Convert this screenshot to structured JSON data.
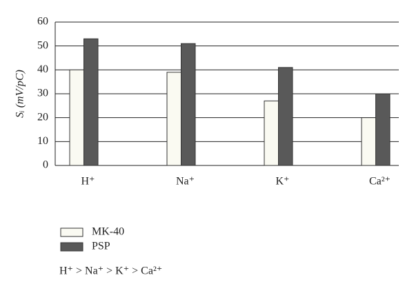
{
  "chart_data": {
    "type": "bar",
    "y_label": "Sᵢ (mV/pC)",
    "categories": [
      "H⁺",
      "Na⁺",
      "K⁺",
      "Ca²⁺"
    ],
    "series": [
      {
        "name": "MK-40",
        "color": "#fafaf2",
        "values": [
          40,
          39,
          27,
          20
        ]
      },
      {
        "name": "PSP",
        "color": "#595959",
        "values": [
          53,
          51,
          41,
          30
        ]
      }
    ],
    "ylim": [
      0,
      60
    ],
    "yticks": [
      0,
      10,
      20,
      30,
      40,
      50,
      60
    ],
    "grid": true,
    "annotation": "H⁺ > Na⁺ > K⁺ > Ca²⁺"
  }
}
